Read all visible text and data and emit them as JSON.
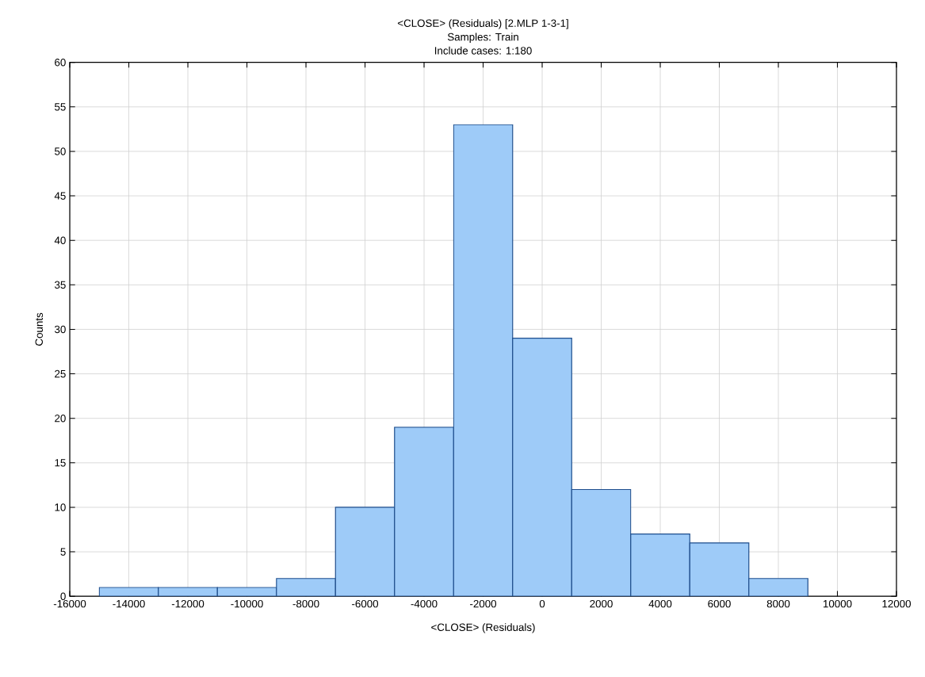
{
  "chart_data": {
    "type": "histogram",
    "title": "<CLOSE> (Residuals) [2.MLP 1-3-1]",
    "subtitle": "Samples: Train",
    "annotations": [
      "Include cases: 1:180"
    ],
    "xlabel": "<CLOSE> (Residuals)",
    "ylabel": "Counts",
    "bins": [
      -15000,
      -13000,
      -11000,
      -9000,
      -7000,
      -5000,
      -3000,
      -1000,
      1000,
      3000,
      5000,
      7000,
      9000
    ],
    "values": [
      1,
      1,
      1,
      2,
      10,
      19,
      53,
      29,
      12,
      7,
      6,
      2
    ],
    "color": "#9ecbf8",
    "xlim": [
      -16000,
      12000
    ],
    "ylim": [
      0,
      60
    ],
    "xticks": [
      -16000,
      -14000,
      -12000,
      -10000,
      -8000,
      -6000,
      -4000,
      -2000,
      0,
      2000,
      4000,
      6000,
      8000,
      10000,
      12000
    ],
    "yticks": [
      0,
      5,
      10,
      15,
      20,
      25,
      30,
      35,
      40,
      45,
      50,
      55,
      60
    ],
    "grid": true
  }
}
